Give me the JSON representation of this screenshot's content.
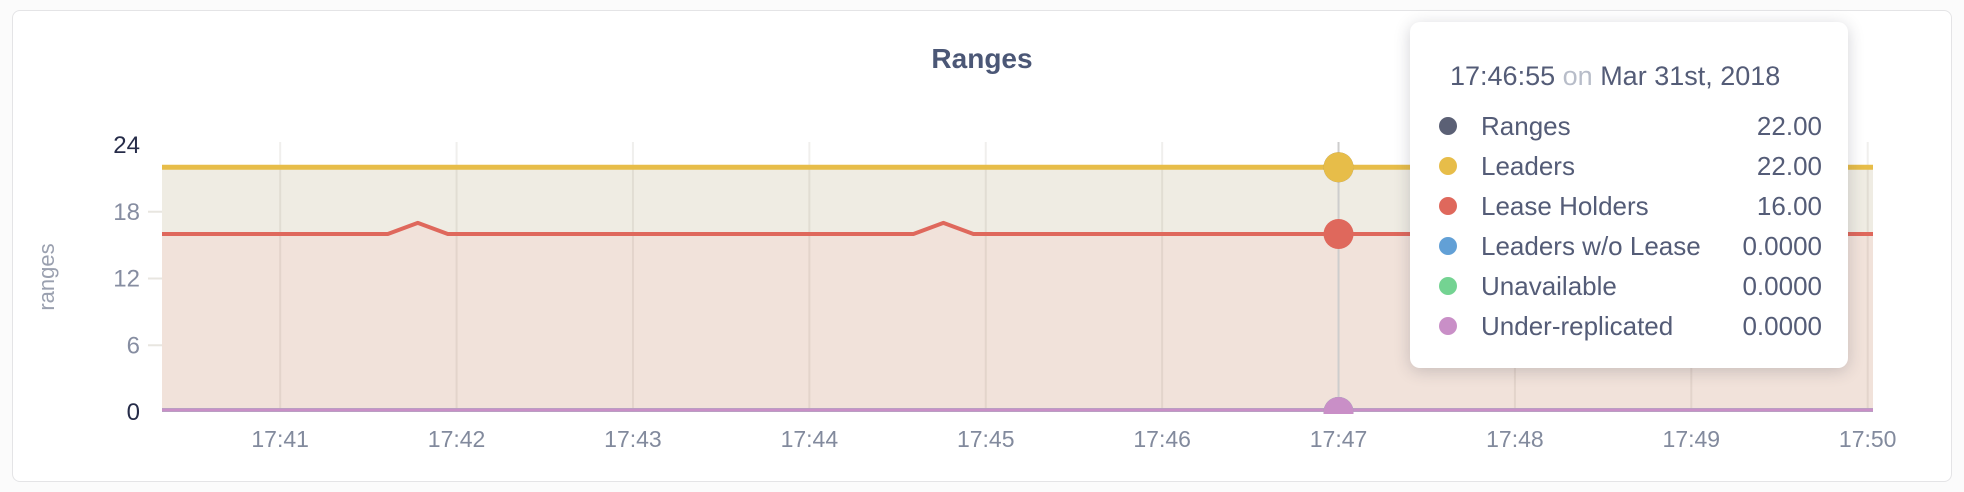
{
  "chart_data": {
    "type": "area",
    "title": "Ranges",
    "ylabel": "ranges",
    "x_ticks": [
      "17:41",
      "17:42",
      "17:43",
      "17:44",
      "17:45",
      "17:46",
      "17:47",
      "17:48",
      "17:49",
      "17:50"
    ],
    "x_range_minutes": [
      40.33,
      50.03
    ],
    "ylim": [
      0,
      24
    ],
    "y_ticks": [
      0,
      6,
      12,
      18,
      24
    ],
    "grid": true,
    "legend_position": "tooltip",
    "hover": {
      "time_minutes": 47.0,
      "time_label": "17:46:55"
    },
    "series": [
      {
        "name": "Ranges",
        "color": "#5b6075",
        "points": [
          [
            40.33,
            22
          ],
          [
            50.03,
            22
          ]
        ],
        "hover_value": "22.00"
      },
      {
        "name": "Leaders",
        "color": "#e7bd49",
        "area_color": "#efece3",
        "points": [
          [
            40.33,
            22
          ],
          [
            50.03,
            22
          ]
        ],
        "hover_value": "22.00"
      },
      {
        "name": "Lease Holders",
        "color": "#df685c",
        "area_color": "#f1e2da",
        "points": [
          [
            40.33,
            16
          ],
          [
            41.61,
            16
          ],
          [
            41.78,
            17
          ],
          [
            41.95,
            16
          ],
          [
            44.59,
            16
          ],
          [
            44.76,
            17
          ],
          [
            44.93,
            16
          ],
          [
            50.03,
            16
          ]
        ],
        "hover_value": "16.00"
      },
      {
        "name": "Leaders w/o Lease",
        "color": "#62a0d6",
        "points": [
          [
            40.33,
            0
          ],
          [
            50.03,
            0
          ]
        ],
        "hover_value": "0.0000"
      },
      {
        "name": "Unavailable",
        "color": "#74d392",
        "points": [
          [
            40.33,
            0
          ],
          [
            50.03,
            0
          ]
        ],
        "hover_value": "0.0000"
      },
      {
        "name": "Under-replicated",
        "color": "#c98fc7",
        "points": [
          [
            40.33,
            0
          ],
          [
            50.03,
            0
          ]
        ],
        "hover_value": "0.0000"
      }
    ]
  },
  "tooltip": {
    "time": "17:46:55",
    "conjunction": "on",
    "date": "Mar 31st, 2018",
    "rows": [
      {
        "label": "Ranges",
        "value": "22.00",
        "color": "#5b6075"
      },
      {
        "label": "Leaders",
        "value": "22.00",
        "color": "#e7bd49"
      },
      {
        "label": "Lease Holders",
        "value": "16.00",
        "color": "#df685c"
      },
      {
        "label": "Leaders w/o Lease",
        "value": "0.0000",
        "color": "#62a0d6"
      },
      {
        "label": "Unavailable",
        "value": "0.0000",
        "color": "#74d392"
      },
      {
        "label": "Under-replicated",
        "value": "0.0000",
        "color": "#c98fc7"
      }
    ]
  },
  "colors": {
    "title": "#4b5776",
    "axis_label_dark": "#262c49",
    "axis_label_mid": "#868da1",
    "x_labels": "#828a9d",
    "ylabel": "#9aa0af",
    "hgrid": "#e8e6e0",
    "hover_line": "#cdcdcd",
    "card_border": "#e4e4e6"
  }
}
